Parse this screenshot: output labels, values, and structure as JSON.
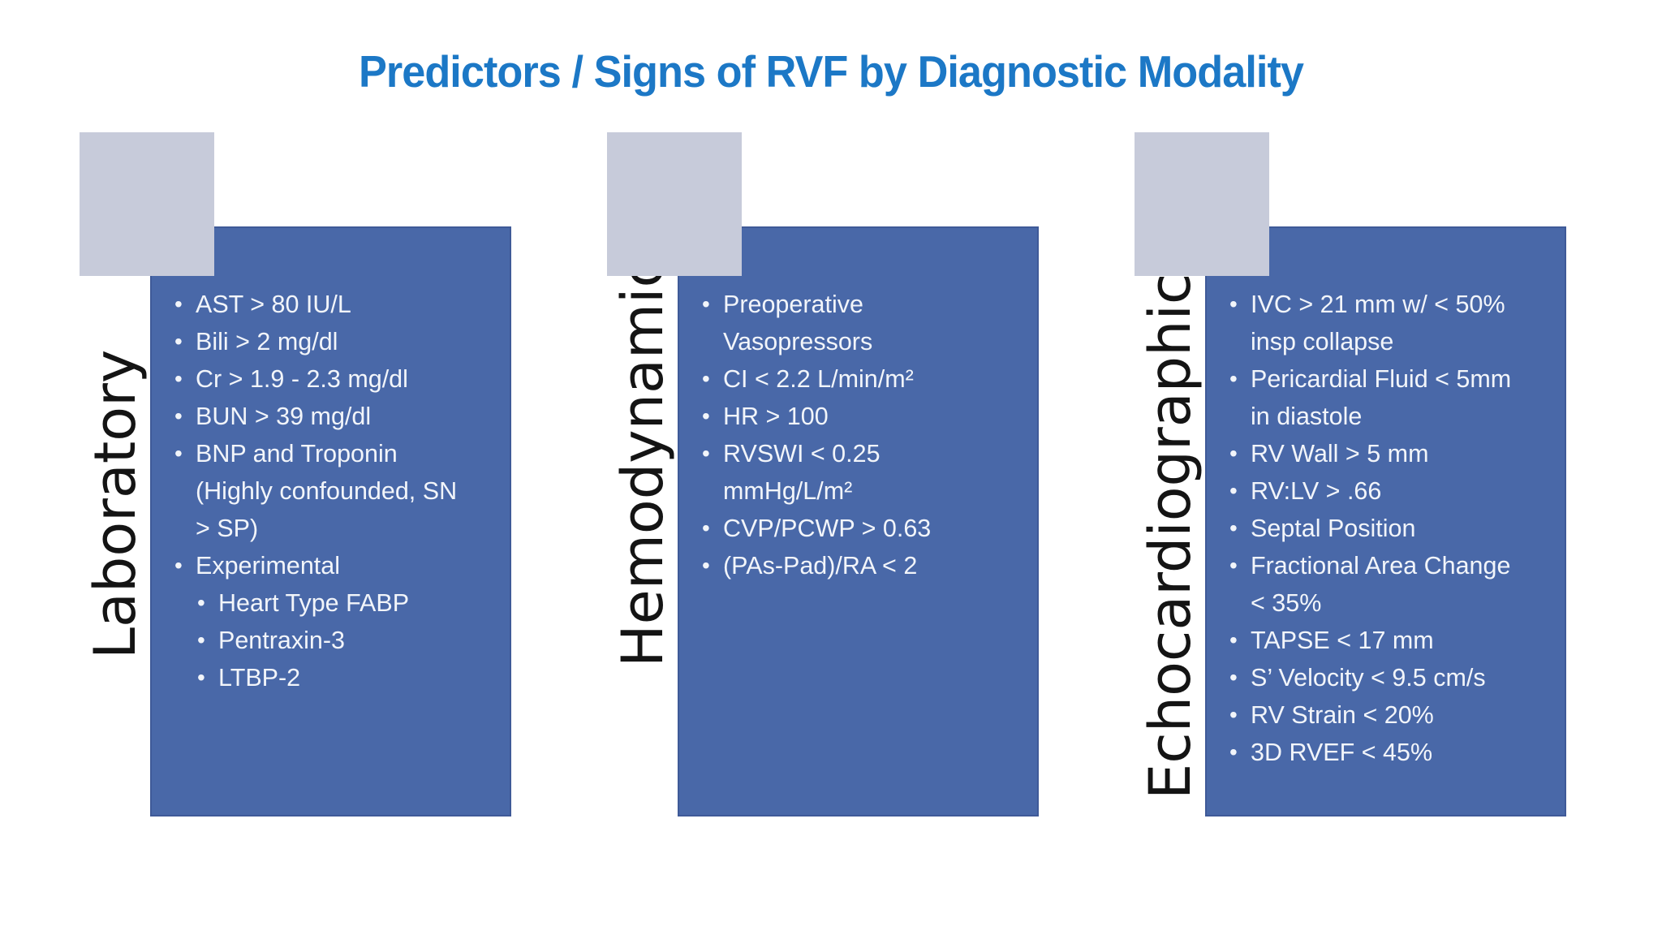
{
  "slide": {
    "title": "Predictors / Signs of RVF by Diagnostic Modality",
    "background_color": "#FFFFFF",
    "title_color": "#1C78C6"
  },
  "colors": {
    "panel_blue": "#4968A8",
    "corner_square_gray": "#C7CBDA",
    "label_text": "#141414",
    "bullet_text": "#F2F5FA"
  },
  "columns": [
    {
      "label": "Laboratory",
      "items": [
        {
          "level": 1,
          "text": "AST > 80 IU/L"
        },
        {
          "level": 1,
          "text": "Bili > 2 mg/dl"
        },
        {
          "level": 1,
          "text": "Cr > 1.9 - 2.3 mg/dl"
        },
        {
          "level": 1,
          "text": "BUN > 39 mg/dl"
        },
        {
          "level": 1,
          "text": "BNP and Troponin\n(Highly confounded, SN\n> SP)"
        },
        {
          "level": 1,
          "text": "Experimental"
        },
        {
          "level": 2,
          "text": "Heart Type FABP"
        },
        {
          "level": 2,
          "text": "Pentraxin-3"
        },
        {
          "level": 2,
          "text": "LTBP-2"
        }
      ]
    },
    {
      "label": "Hemodynamic",
      "items": [
        {
          "level": 1,
          "text": "Preoperative\nVasopressors"
        },
        {
          "level": 1,
          "text": "CI < 2.2 L/min/m²"
        },
        {
          "level": 1,
          "text": "HR > 100"
        },
        {
          "level": 1,
          "text": "RVSWI < 0.25\nmmHg/L/m²"
        },
        {
          "level": 1,
          "text": "CVP/PCWP > 0.63"
        },
        {
          "level": 1,
          "text": "(PAs-Pad)/RA < 2"
        }
      ]
    },
    {
      "label": "Echocardiographic",
      "items": [
        {
          "level": 1,
          "text": "IVC > 21 mm w/ < 50%\ninsp collapse"
        },
        {
          "level": 1,
          "text": "Pericardial Fluid < 5mm\nin diastole"
        },
        {
          "level": 1,
          "text": "RV Wall > 5 mm"
        },
        {
          "level": 1,
          "text": "RV:LV > .66"
        },
        {
          "level": 1,
          "text": "Septal Position"
        },
        {
          "level": 1,
          "text": "Fractional Area Change\n< 35%"
        },
        {
          "level": 1,
          "text": "TAPSE < 17 mm"
        },
        {
          "level": 1,
          "text": "S’ Velocity < 9.5 cm/s"
        },
        {
          "level": 1,
          "text": "RV Strain < 20%"
        },
        {
          "level": 1,
          "text": "3D RVEF < 45%"
        }
      ]
    }
  ]
}
